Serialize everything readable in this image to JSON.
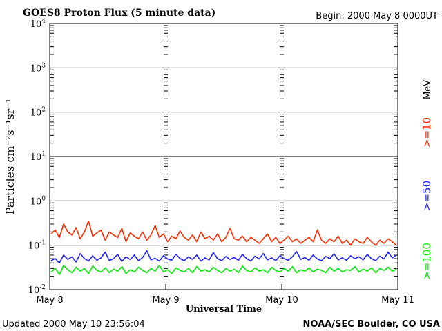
{
  "header": {
    "title": "GOES8 Proton Flux (5 minute data)",
    "begin": "Begin: 2000 May 8 0000UT"
  },
  "footer": {
    "updated": "Updated 2000 May 10 23:56:04",
    "source": "NOAA/SEC Boulder, CO USA"
  },
  "legend": {
    "unit": "MeV",
    "entries": [
      {
        "label": ">=10",
        "color": "#ff2a00"
      },
      {
        "label": ">=50",
        "color": "#2222ff"
      },
      {
        "label": ">=100",
        "color": "#00ee00"
      }
    ]
  },
  "chart_data": {
    "type": "line",
    "title": "GOES8 Proton Flux (5 minute data)",
    "xlabel": "Universal Time",
    "ylabel": "Particles cm⁻²s⁻¹sr⁻¹",
    "yscale": "log",
    "ylim": [
      0.01,
      10000
    ],
    "y_ticks": [
      {
        "value": 0.01,
        "base": "10",
        "exp": "-2"
      },
      {
        "value": 0.1,
        "base": "10",
        "exp": "-1"
      },
      {
        "value": 1,
        "base": "10",
        "exp": "0"
      },
      {
        "value": 10,
        "base": "10",
        "exp": "1"
      },
      {
        "value": 100,
        "base": "10",
        "exp": "2"
      },
      {
        "value": 1000,
        "base": "10",
        "exp": "3"
      },
      {
        "value": 10000,
        "base": "10",
        "exp": "4"
      }
    ],
    "x_ticks": [
      "May 8",
      "May 9",
      "May 10",
      "May 11"
    ],
    "grid": "horizontal at decades",
    "legend_position": "right",
    "series": [
      {
        "name": ">=10",
        "color": "#ff2a00",
        "values": [
          0.18,
          0.22,
          0.15,
          0.3,
          0.2,
          0.17,
          0.25,
          0.14,
          0.2,
          0.35,
          0.16,
          0.19,
          0.22,
          0.13,
          0.2,
          0.17,
          0.15,
          0.24,
          0.12,
          0.19,
          0.16,
          0.14,
          0.2,
          0.13,
          0.17,
          0.28,
          0.15,
          0.18,
          0.12,
          0.16,
          0.14,
          0.21,
          0.15,
          0.13,
          0.17,
          0.12,
          0.2,
          0.14,
          0.16,
          0.13,
          0.18,
          0.12,
          0.15,
          0.24,
          0.14,
          0.13,
          0.16,
          0.12,
          0.15,
          0.13,
          0.11,
          0.14,
          0.18,
          0.12,
          0.15,
          0.11,
          0.13,
          0.16,
          0.12,
          0.14,
          0.11,
          0.13,
          0.15,
          0.12,
          0.22,
          0.13,
          0.11,
          0.14,
          0.12,
          0.16,
          0.11,
          0.13,
          0.1,
          0.14,
          0.12,
          0.11,
          0.15,
          0.12,
          0.1,
          0.13,
          0.11,
          0.14,
          0.12,
          0.1
        ]
      },
      {
        "name": ">=50",
        "color": "#2222ff",
        "values": [
          0.045,
          0.05,
          0.04,
          0.06,
          0.048,
          0.055,
          0.042,
          0.065,
          0.05,
          0.044,
          0.058,
          0.046,
          0.052,
          0.07,
          0.045,
          0.05,
          0.062,
          0.043,
          0.055,
          0.048,
          0.06,
          0.045,
          0.053,
          0.075,
          0.047,
          0.051,
          0.044,
          0.058,
          0.049,
          0.046,
          0.063,
          0.05,
          0.045,
          0.055,
          0.048,
          0.06,
          0.044,
          0.052,
          0.047,
          0.068,
          0.05,
          0.045,
          0.056,
          0.048,
          0.053,
          0.046,
          0.062,
          0.05,
          0.044,
          0.057,
          0.049,
          0.065,
          0.047,
          0.052,
          0.045,
          0.058,
          0.05,
          0.046,
          0.055,
          0.072,
          0.048,
          0.053,
          0.046,
          0.06,
          0.049,
          0.045,
          0.056,
          0.05,
          0.064,
          0.047,
          0.052,
          0.046,
          0.058,
          0.05,
          0.055,
          0.047,
          0.062,
          0.05,
          0.045,
          0.057,
          0.049,
          0.07,
          0.052,
          0.06
        ]
      },
      {
        "name": ">=100",
        "color": "#00ee00",
        "values": [
          0.025,
          0.03,
          0.022,
          0.035,
          0.028,
          0.024,
          0.032,
          0.026,
          0.03,
          0.023,
          0.034,
          0.027,
          0.025,
          0.031,
          0.024,
          0.029,
          0.026,
          0.033,
          0.023,
          0.028,
          0.025,
          0.032,
          0.027,
          0.024,
          0.03,
          0.026,
          0.035,
          0.025,
          0.028,
          0.023,
          0.031,
          0.027,
          0.025,
          0.03,
          0.024,
          0.033,
          0.026,
          0.028,
          0.025,
          0.032,
          0.027,
          0.024,
          0.03,
          0.026,
          0.029,
          0.024,
          0.034,
          0.027,
          0.025,
          0.031,
          0.026,
          0.028,
          0.024,
          0.032,
          0.027,
          0.025,
          0.03,
          0.026,
          0.033,
          0.024,
          0.028,
          0.026,
          0.031,
          0.025,
          0.029,
          0.027,
          0.024,
          0.032,
          0.026,
          0.03,
          0.025,
          0.028,
          0.027,
          0.033,
          0.025,
          0.029,
          0.026,
          0.031,
          0.024,
          0.03,
          0.027,
          0.032,
          0.026,
          0.029
        ]
      }
    ]
  }
}
